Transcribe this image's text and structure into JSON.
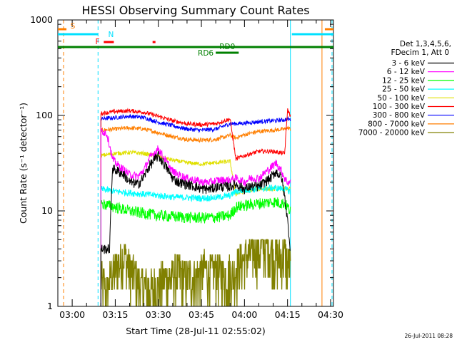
{
  "chart_data": {
    "type": "line",
    "title": "HESSI Observing Summary Count Rates",
    "xlabel": "Start Time (28-Jul-11 02:55:02)",
    "ylabel": "Count Rate (s⁻¹ detector⁻¹)",
    "x_unit": "minutes",
    "xlim": [
      0,
      96
    ],
    "ylim": [
      1,
      1000
    ],
    "yscale": "log",
    "grid": false,
    "x_ticks": [
      {
        "x": 5,
        "label": "03:00"
      },
      {
        "x": 20,
        "label": "03:15"
      },
      {
        "x": 35,
        "label": "03:30"
      },
      {
        "x": 50,
        "label": "03:45"
      },
      {
        "x": 65,
        "label": "04:00"
      },
      {
        "x": 80,
        "label": "04:15"
      },
      {
        "x": 95,
        "label": "04:30"
      }
    ],
    "y_ticks": [
      {
        "y": 1,
        "label": "1"
      },
      {
        "y": 10,
        "label": "10"
      },
      {
        "y": 100,
        "label": "100"
      },
      {
        "y": 1000,
        "label": "1000"
      }
    ],
    "legend_header": [
      "Det 1,3,4,5,6,",
      "FDecim 1, Att 0"
    ],
    "legend_position": "right",
    "series": [
      {
        "name": "3 - 6 keV",
        "color": "#000000",
        "x": [
          15,
          17,
          18,
          19,
          21,
          23,
          25,
          28,
          30,
          32,
          35,
          38,
          40,
          42,
          45,
          48,
          50,
          53,
          56,
          60,
          62,
          65,
          67,
          70,
          72,
          74,
          76,
          78,
          79,
          80,
          81
        ],
        "y": [
          4,
          4,
          4,
          28,
          26,
          24,
          20,
          19,
          23,
          30,
          38,
          28,
          22,
          20,
          19,
          18,
          17,
          17,
          18,
          18,
          19,
          17,
          18,
          18,
          20,
          22,
          26,
          22,
          14,
          8,
          4
        ]
      },
      {
        "name": "6 - 12 keV",
        "color": "#ff00ff",
        "x": [
          15,
          17,
          18,
          19,
          21,
          23,
          25,
          28,
          30,
          32,
          35,
          38,
          40,
          42,
          45,
          48,
          50,
          53,
          56,
          60,
          62,
          65,
          67,
          70,
          72,
          74,
          76,
          78,
          79,
          80,
          81
        ],
        "y": [
          70,
          65,
          50,
          35,
          30,
          27,
          24,
          23,
          27,
          36,
          45,
          32,
          26,
          24,
          22,
          21,
          20,
          20,
          21,
          21,
          22,
          20,
          22,
          22,
          25,
          28,
          32,
          26,
          22,
          20,
          20
        ]
      },
      {
        "name": "12 - 25 keV",
        "color": "#00ff00",
        "x": [
          15,
          20,
          25,
          30,
          35,
          40,
          45,
          50,
          55,
          60,
          62,
          65,
          70,
          75,
          79,
          80,
          81
        ],
        "y": [
          12,
          11,
          10,
          9.5,
          9,
          8.8,
          8.6,
          8.5,
          8.6,
          9,
          11,
          11.5,
          12,
          12.5,
          12,
          11,
          10
        ]
      },
      {
        "name": "25 - 50 keV",
        "color": "#00ffff",
        "x": [
          15,
          20,
          25,
          30,
          35,
          40,
          45,
          50,
          55,
          60,
          62,
          65,
          70,
          75,
          79,
          80,
          81
        ],
        "y": [
          17,
          16,
          15.5,
          15,
          14.5,
          14,
          13.8,
          13.6,
          13.8,
          14.5,
          16,
          16.5,
          17,
          17.5,
          17,
          16.5,
          16
        ]
      },
      {
        "name": "50 - 100 keV",
        "color": "#e0e000",
        "x": [
          15,
          20,
          25,
          30,
          35,
          40,
          45,
          50,
          55,
          60,
          62,
          65,
          70,
          75,
          79,
          80,
          81
        ],
        "y": [
          38,
          40,
          41,
          40,
          37,
          34,
          32,
          31,
          32,
          33,
          15,
          16,
          17,
          17,
          17,
          17,
          17
        ]
      },
      {
        "name": "100 - 300 keV",
        "color": "#ff0000",
        "x": [
          15,
          20,
          25,
          30,
          35,
          40,
          45,
          50,
          55,
          60,
          62,
          65,
          70,
          75,
          79,
          80,
          81
        ],
        "y": [
          105,
          110,
          112,
          108,
          98,
          88,
          82,
          80,
          82,
          92,
          35,
          38,
          42,
          42,
          40,
          115,
          100
        ]
      },
      {
        "name": "300 - 800 keV",
        "color": "#0000ff",
        "x": [
          15,
          20,
          25,
          30,
          35,
          40,
          45,
          50,
          55,
          60,
          62,
          65,
          70,
          75,
          79,
          80,
          81
        ],
        "y": [
          92,
          95,
          98,
          95,
          85,
          78,
          72,
          70,
          72,
          82,
          82,
          83,
          86,
          88,
          90,
          92,
          90
        ]
      },
      {
        "name": "800 - 7000 keV",
        "color": "#ff7f00",
        "x": [
          15,
          20,
          25,
          30,
          35,
          40,
          45,
          50,
          55,
          60,
          62,
          65,
          70,
          75,
          79,
          80,
          81
        ],
        "y": [
          70,
          72,
          74,
          72,
          66,
          60,
          56,
          55,
          56,
          62,
          58,
          63,
          68,
          70,
          72,
          74,
          72
        ]
      },
      {
        "name": "7000 - 20000 keV",
        "color": "#808000",
        "x": [
          15,
          17,
          19,
          21,
          23,
          25,
          27,
          29,
          31,
          33,
          35,
          37,
          39,
          41,
          43,
          45,
          47,
          49,
          51,
          53,
          55,
          57,
          59,
          61,
          63,
          65,
          67,
          69,
          71,
          73,
          75,
          77,
          79,
          80,
          81
        ],
        "y": [
          1.8,
          1.5,
          2.2,
          2.8,
          3.5,
          2.5,
          2.2,
          1.6,
          1.5,
          1.5,
          1.7,
          1.8,
          2.0,
          2.3,
          2.2,
          2.0,
          2.0,
          2.1,
          2.5,
          2.2,
          2.4,
          2.2,
          2.3,
          2.2,
          2.8,
          3.2,
          3.6,
          4.2,
          4.0,
          4.8,
          3.5,
          3.2,
          3.6,
          3.0,
          2.5
        ]
      }
    ],
    "vertical_markers": [
      {
        "x": 2,
        "color": "#ff7f00",
        "dash": true
      },
      {
        "x": 14,
        "color": "#00e0ff",
        "dash": true
      },
      {
        "x": 81,
        "color": "#00e0ff",
        "dash": false
      },
      {
        "x": 92,
        "color": "#ff7f00",
        "dash": false
      },
      {
        "x": 95.5,
        "color": "#00e0ff",
        "dash": true
      }
    ],
    "flag_bars": [
      {
        "label": "S",
        "color": "#ff7f00",
        "label_x": 5.2,
        "level": 1,
        "segments": [
          [
            0,
            3
          ],
          [
            93,
            96
          ]
        ]
      },
      {
        "label": "N",
        "color": "#00e0ff",
        "label_x": 18.5,
        "level": 2,
        "segments": [
          [
            0,
            14
          ],
          [
            81.5,
            96
          ]
        ]
      },
      {
        "label": "F",
        "color": "#ff0000",
        "label_x": 13.8,
        "level": 3,
        "segments": [
          [
            16,
            19.5
          ],
          [
            33,
            34
          ]
        ]
      },
      {
        "label": "RD0",
        "color": "#008000",
        "label_x": 59,
        "level": 4,
        "segments": [
          [
            0,
            96
          ]
        ]
      },
      {
        "label": "RD6",
        "color": "#008000",
        "label_x": 51.5,
        "level": 5,
        "segments": [
          [
            55,
            63
          ]
        ]
      }
    ]
  },
  "timestamp": "26-Jul-2011 08:28"
}
